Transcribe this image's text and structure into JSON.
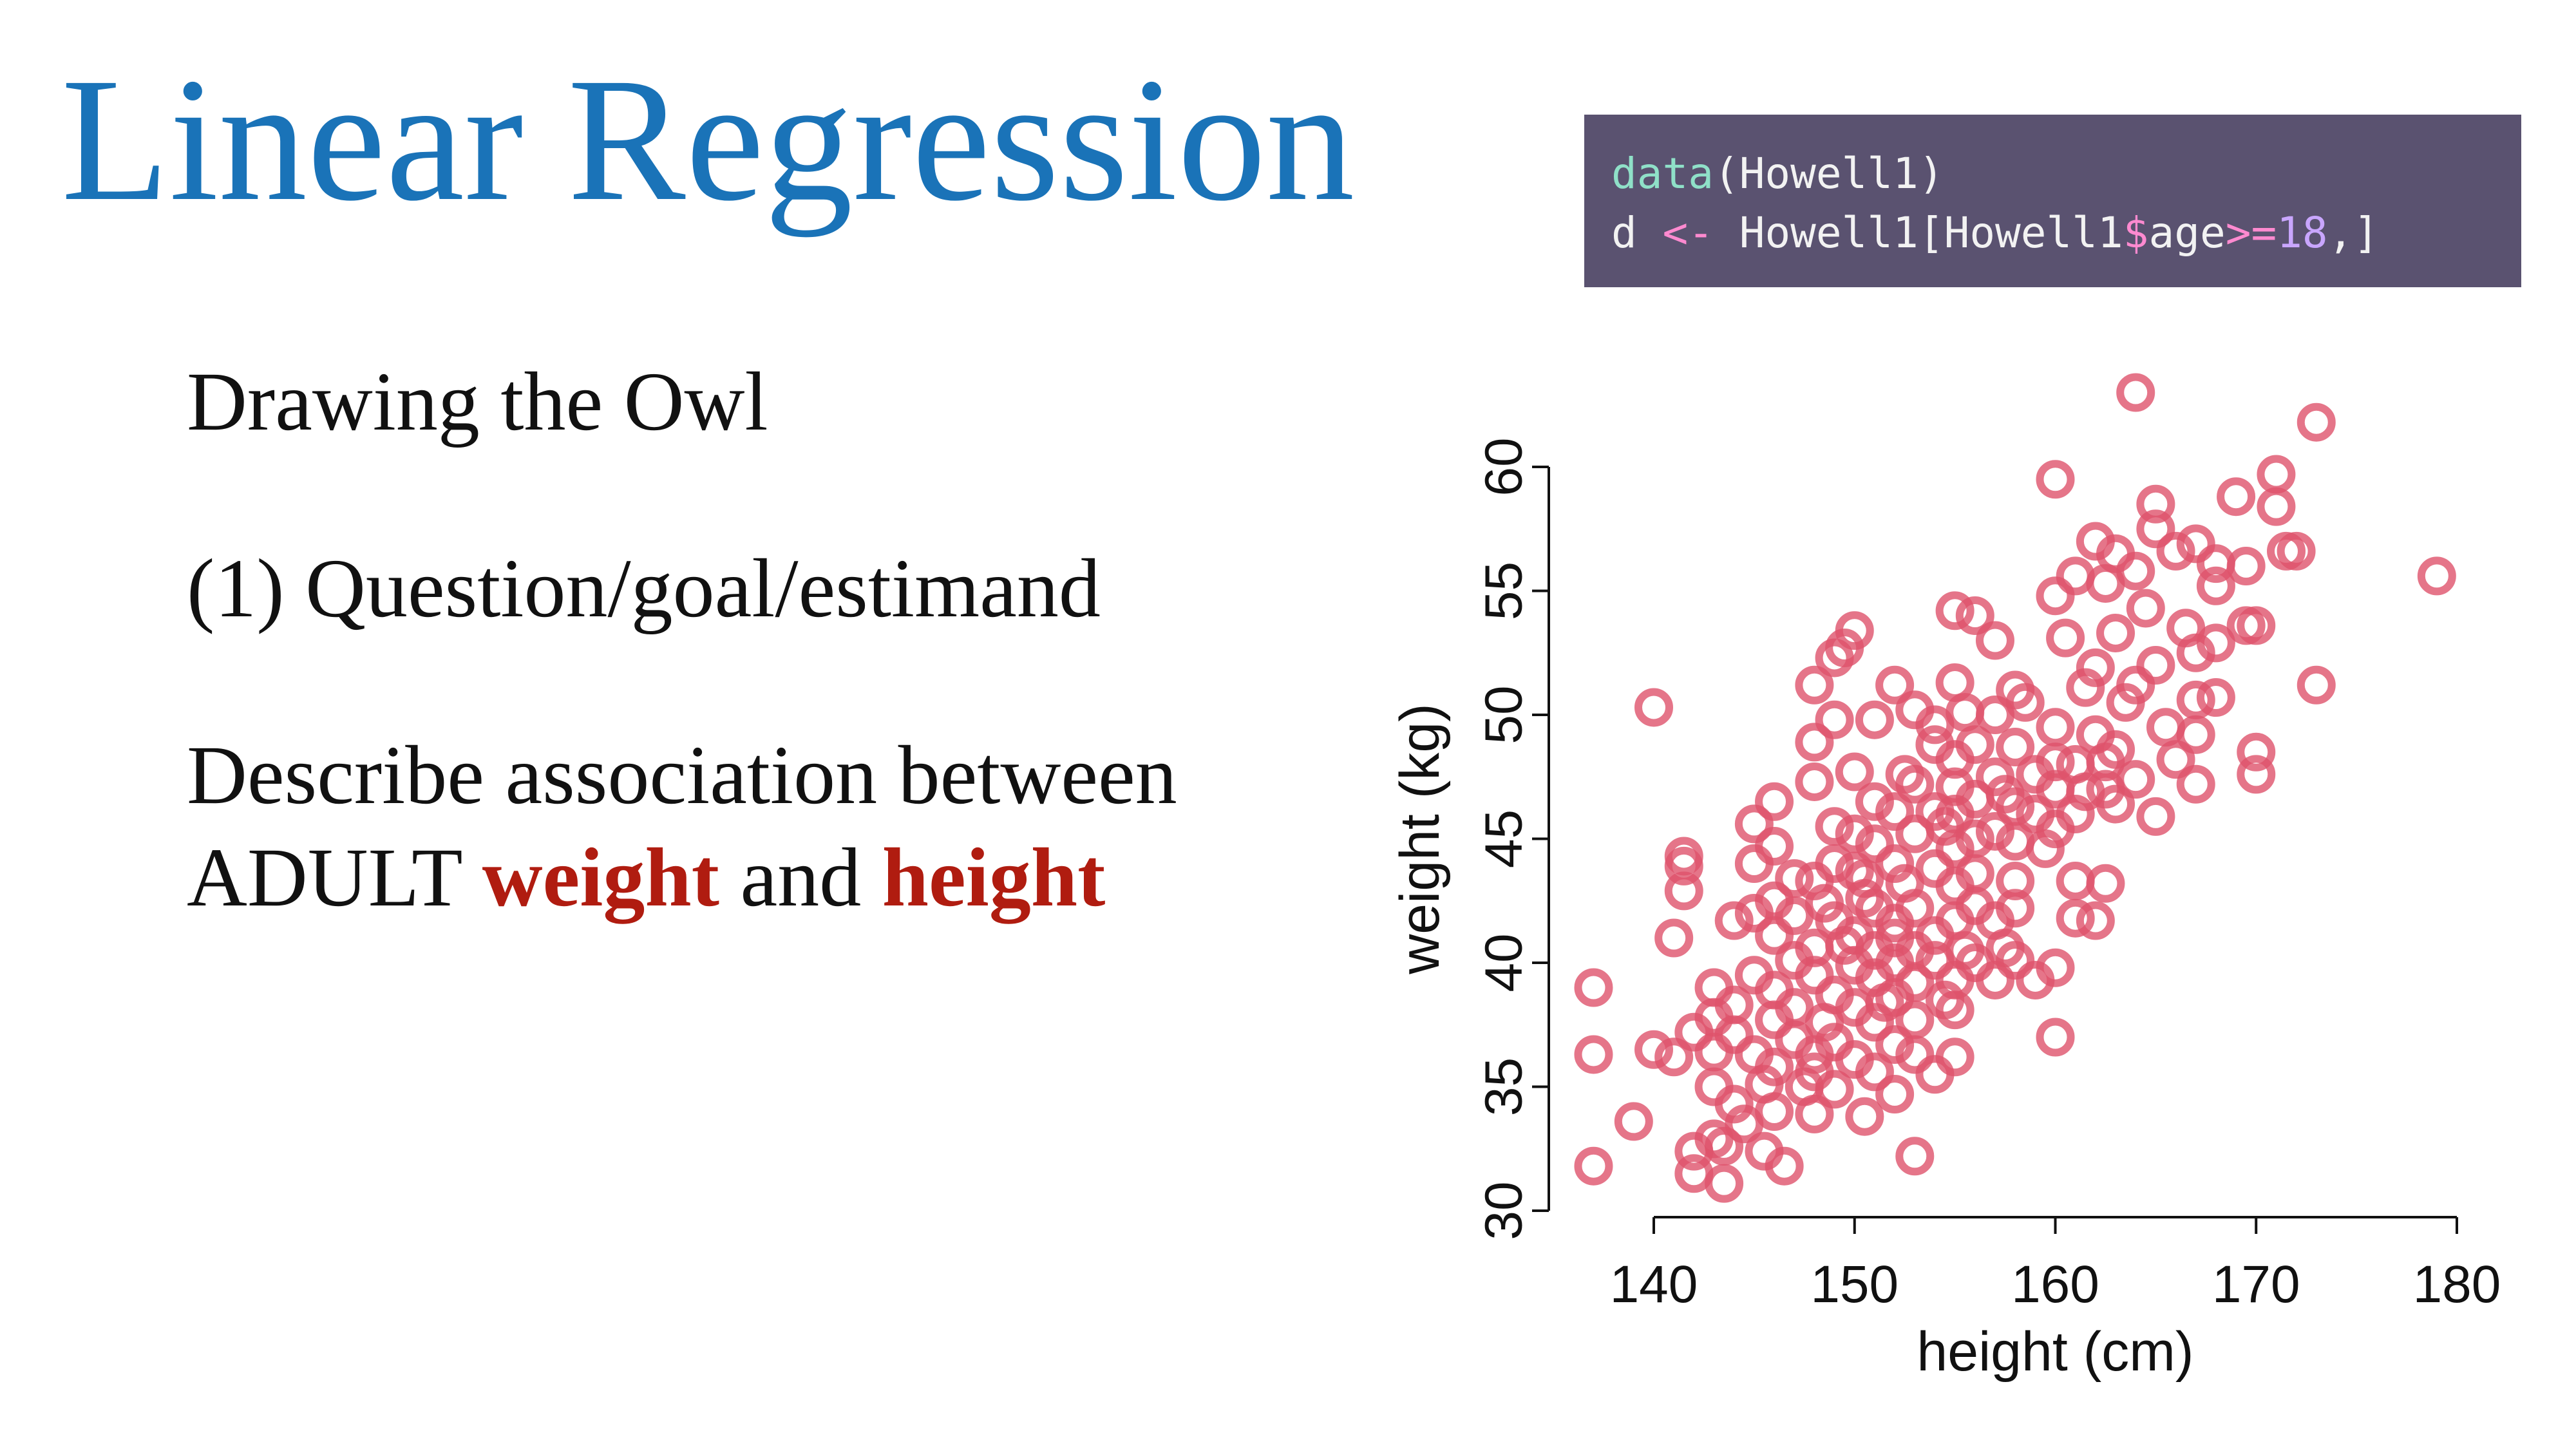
{
  "title": "Linear Regression",
  "bullets": {
    "b1": "Drawing the Owl",
    "b2": "(1) Question/goal/estimand",
    "b3_line1": "Describe association between",
    "b3_line2_pre": "ADULT ",
    "b3_word1": "weight",
    "b3_mid": " and ",
    "b3_word2": "height"
  },
  "code": {
    "line1_fn": "data",
    "line1_rest": "(Howell1)",
    "line2_a": "d ",
    "line2_assign": "<-",
    "line2_b": " Howell1[Howell1",
    "line2_dollar": "$",
    "line2_c": "age",
    "line2_ge": ">=",
    "line2_num": "18",
    "line2_end": ",]"
  },
  "colors": {
    "title": "#1a73b8",
    "highlight": "#b01c10",
    "code_bg": "#5a5270",
    "points": "#df536b"
  },
  "chart_data": {
    "type": "scatter",
    "xlabel": "height (cm)",
    "ylabel": "weight (kg)",
    "xlim": [
      136,
      180
    ],
    "ylim": [
      30,
      63
    ],
    "x_ticks": [
      140,
      150,
      160,
      170,
      180
    ],
    "y_ticks": [
      30,
      35,
      40,
      45,
      50,
      55,
      60
    ],
    "grid": false,
    "series": [
      {
        "marker": "open-circle",
        "color": "#df536b",
        "points": [
          [
            164,
            63
          ],
          [
            173,
            61.8
          ],
          [
            160,
            59.5
          ],
          [
            171,
            59.7
          ],
          [
            165,
            58.5
          ],
          [
            169,
            58.8
          ],
          [
            171,
            58.4
          ],
          [
            165,
            57.5
          ],
          [
            162,
            57
          ],
          [
            167,
            56.9
          ],
          [
            172,
            56.6
          ],
          [
            171.5,
            56.6
          ],
          [
            163,
            56.5
          ],
          [
            166,
            56.6
          ],
          [
            169.5,
            56
          ],
          [
            168,
            56.1
          ],
          [
            179,
            55.6
          ],
          [
            161,
            55.6
          ],
          [
            164,
            55.8
          ],
          [
            162.5,
            55.3
          ],
          [
            168,
            55.2
          ],
          [
            160,
            54.8
          ],
          [
            164.5,
            54.3
          ],
          [
            155,
            54.2
          ],
          [
            156,
            54
          ],
          [
            170,
            53.6
          ],
          [
            169.5,
            53.6
          ],
          [
            166.5,
            53.5
          ],
          [
            150,
            53.4
          ],
          [
            163,
            53.3
          ],
          [
            157,
            53
          ],
          [
            160.5,
            53.1
          ],
          [
            149.5,
            52.7
          ],
          [
            149,
            52.3
          ],
          [
            168,
            52.9
          ],
          [
            167,
            52.5
          ],
          [
            165,
            52
          ],
          [
            162,
            51.9
          ],
          [
            148,
            51.2
          ],
          [
            152,
            51.2
          ],
          [
            155,
            51.3
          ],
          [
            161.5,
            51.1
          ],
          [
            173,
            51.2
          ],
          [
            158,
            51
          ],
          [
            164,
            51.2
          ],
          [
            167,
            50.6
          ],
          [
            168,
            50.7
          ],
          [
            158.5,
            50.5
          ],
          [
            163.5,
            50.5
          ],
          [
            140,
            50.3
          ],
          [
            153,
            50.2
          ],
          [
            155.5,
            50.1
          ],
          [
            157,
            50
          ],
          [
            149,
            49.8
          ],
          [
            151,
            49.8
          ],
          [
            154,
            49.6
          ],
          [
            160,
            49.5
          ],
          [
            165.5,
            49.5
          ],
          [
            162,
            49.2
          ],
          [
            167,
            49.2
          ],
          [
            148,
            48.9
          ],
          [
            154,
            48.8
          ],
          [
            156,
            48.8
          ],
          [
            158,
            48.7
          ],
          [
            170,
            48.5
          ],
          [
            163,
            48.6
          ],
          [
            155,
            48.2
          ],
          [
            160,
            48.1
          ],
          [
            162.5,
            48.1
          ],
          [
            166,
            48.2
          ],
          [
            161,
            48
          ],
          [
            150,
            47.7
          ],
          [
            152.5,
            47.6
          ],
          [
            157,
            47.5
          ],
          [
            159,
            47.6
          ],
          [
            170,
            47.6
          ],
          [
            164,
            47.4
          ],
          [
            148,
            47.3
          ],
          [
            153,
            47.2
          ],
          [
            155,
            47.1
          ],
          [
            167,
            47.2
          ],
          [
            160,
            47
          ],
          [
            161.5,
            46.9
          ],
          [
            162.5,
            47
          ],
          [
            157.5,
            46.8
          ],
          [
            146,
            46.5
          ],
          [
            151,
            46.5
          ],
          [
            156,
            46.6
          ],
          [
            158,
            46.3
          ],
          [
            163,
            46.4
          ],
          [
            152,
            46.1
          ],
          [
            154,
            46.1
          ],
          [
            155,
            46
          ],
          [
            159,
            46
          ],
          [
            161,
            46
          ],
          [
            165,
            45.9
          ],
          [
            145,
            45.6
          ],
          [
            150,
            45.2
          ],
          [
            149,
            45.5
          ],
          [
            153,
            45.2
          ],
          [
            154.5,
            45.5
          ],
          [
            157,
            45.3
          ],
          [
            160,
            45.4
          ],
          [
            156,
            45
          ],
          [
            158,
            44.9
          ],
          [
            146,
            44.7
          ],
          [
            151,
            44.8
          ],
          [
            155,
            44.6
          ],
          [
            159.5,
            44.6
          ],
          [
            141.5,
            44.3
          ],
          [
            145,
            44
          ],
          [
            149,
            44
          ],
          [
            150,
            43.7
          ],
          [
            152,
            44
          ],
          [
            154,
            43.8
          ],
          [
            156,
            43.6
          ],
          [
            141.5,
            43.9
          ],
          [
            147,
            43.4
          ],
          [
            148,
            43.3
          ],
          [
            150.5,
            43.4
          ],
          [
            152.5,
            43.2
          ],
          [
            155,
            43.1
          ],
          [
            158,
            43.3
          ],
          [
            161,
            43.3
          ],
          [
            162.5,
            43.2
          ],
          [
            141.5,
            42.9
          ],
          [
            146,
            42.5
          ],
          [
            148.5,
            42.4
          ],
          [
            150.5,
            42.6
          ],
          [
            151,
            42.2
          ],
          [
            153,
            42.2
          ],
          [
            156,
            42.3
          ],
          [
            158,
            42.2
          ],
          [
            144,
            41.7
          ],
          [
            145,
            42
          ],
          [
            147,
            41.9
          ],
          [
            149,
            41.7
          ],
          [
            152,
            41.6
          ],
          [
            155,
            41.7
          ],
          [
            157,
            41.7
          ],
          [
            161,
            41.8
          ],
          [
            162,
            41.7
          ],
          [
            146,
            41.1
          ],
          [
            150,
            41.1
          ],
          [
            152,
            41
          ],
          [
            154,
            41.1
          ],
          [
            141,
            41
          ],
          [
            148,
            40.6
          ],
          [
            149.5,
            40.7
          ],
          [
            151,
            40.5
          ],
          [
            153,
            40.5
          ],
          [
            155.5,
            40.5
          ],
          [
            157.5,
            40.6
          ],
          [
            147,
            40.1
          ],
          [
            150,
            39.9
          ],
          [
            152,
            40
          ],
          [
            154,
            40.1
          ],
          [
            156,
            40
          ],
          [
            158,
            40.1
          ],
          [
            160,
            39.8
          ],
          [
            145,
            39.5
          ],
          [
            148,
            39.5
          ],
          [
            151,
            39.4
          ],
          [
            153,
            39.2
          ],
          [
            155,
            39.3
          ],
          [
            157,
            39.3
          ],
          [
            159,
            39.3
          ],
          [
            137,
            39
          ],
          [
            143,
            39
          ],
          [
            146,
            38.9
          ],
          [
            149,
            38.7
          ],
          [
            152,
            38.6
          ],
          [
            154.5,
            38.5
          ],
          [
            144,
            38.3
          ],
          [
            147,
            38.2
          ],
          [
            150,
            38.2
          ],
          [
            151.5,
            38.4
          ],
          [
            155,
            38.1
          ],
          [
            143,
            37.8
          ],
          [
            146,
            37.7
          ],
          [
            148.5,
            37.6
          ],
          [
            151,
            37.6
          ],
          [
            153,
            37.7
          ],
          [
            142,
            37.2
          ],
          [
            144,
            37.1
          ],
          [
            147,
            36.9
          ],
          [
            149,
            36.8
          ],
          [
            152,
            36.7
          ],
          [
            160,
            37
          ],
          [
            140,
            36.5
          ],
          [
            143,
            36.4
          ],
          [
            145,
            36.3
          ],
          [
            148,
            36.3
          ],
          [
            150,
            36.1
          ],
          [
            153,
            36.3
          ],
          [
            155,
            36.2
          ],
          [
            137,
            36.3
          ],
          [
            141,
            36.2
          ],
          [
            146,
            35.8
          ],
          [
            148,
            35.6
          ],
          [
            151,
            35.6
          ],
          [
            154,
            35.5
          ],
          [
            143,
            35
          ],
          [
            145.5,
            35.1
          ],
          [
            147.5,
            35
          ],
          [
            149,
            34.9
          ],
          [
            152,
            34.7
          ],
          [
            144,
            34.3
          ],
          [
            146,
            34
          ],
          [
            148,
            33.9
          ],
          [
            150.5,
            33.8
          ],
          [
            139,
            33.6
          ],
          [
            144.5,
            33.5
          ],
          [
            143,
            32.9
          ],
          [
            142,
            32.4
          ],
          [
            143.5,
            32.6
          ],
          [
            145.5,
            32.4
          ],
          [
            153,
            32.2
          ],
          [
            137,
            31.8
          ],
          [
            142,
            31.5
          ],
          [
            146.5,
            31.8
          ],
          [
            143.5,
            31.1
          ]
        ]
      }
    ]
  }
}
